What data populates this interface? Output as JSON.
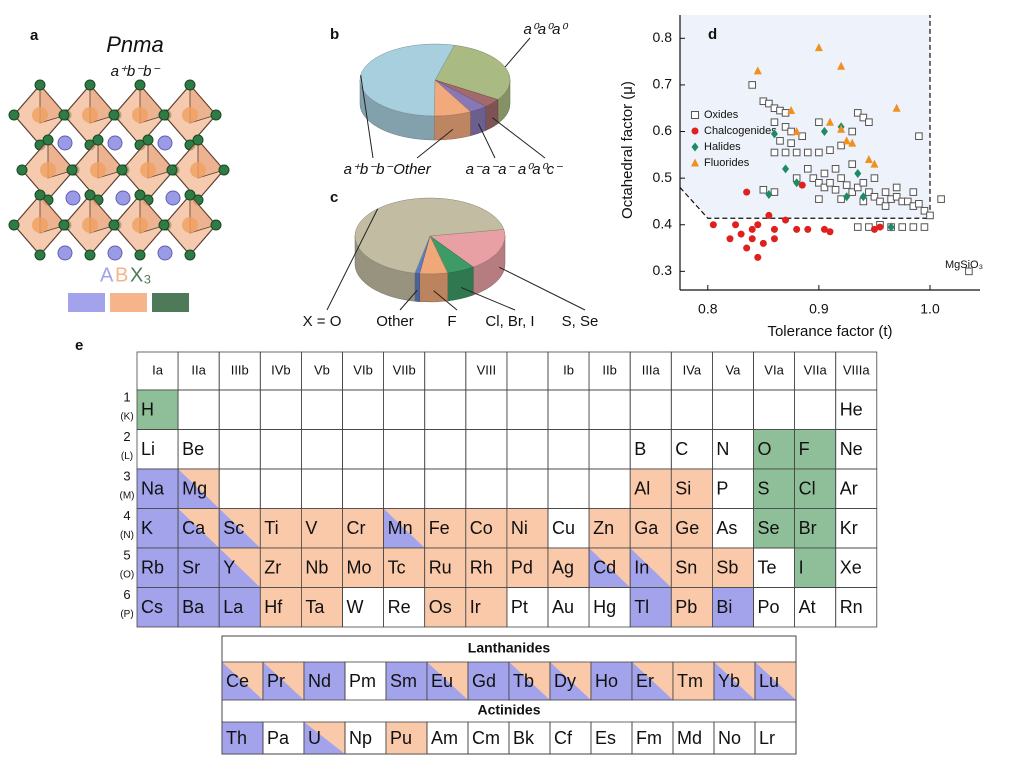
{
  "panel_a": {
    "panel": "a",
    "title": "Pnma",
    "subtitle": "a⁺b⁻b⁻",
    "sites": [
      {
        "label": "A",
        "color": "#a3a3ec"
      },
      {
        "label": "B",
        "color": "#f6b48a"
      },
      {
        "label": "X₃",
        "color": "#4f7a5a"
      }
    ]
  },
  "chart_data": [
    {
      "type": "pie",
      "panel": "b",
      "categories": [
        "a⁰a⁰a⁰",
        "a⁰a⁰c⁻",
        "a⁻a⁻a⁻",
        "Other",
        "a⁺b⁻b⁻"
      ],
      "values": [
        30,
        4,
        4,
        8,
        54
      ],
      "colors": [
        "#a9bb82",
        "#a26a6a",
        "#8a78b6",
        "#f2aa7c",
        "#a8cfdd"
      ]
    },
    {
      "type": "pie",
      "panel": "c",
      "categories": [
        "S, Se",
        "Cl, Br, I",
        "F",
        "Other",
        "X = O"
      ],
      "values": [
        18,
        6,
        6,
        1,
        69
      ],
      "colors": [
        "#e8a0a4",
        "#3e9a66",
        "#f0a878",
        "#5b7fc4",
        "#c2bca2"
      ]
    },
    {
      "type": "scatter",
      "panel": "d",
      "xlabel": "Tolerance factor (t)",
      "ylabel": "Octahedral factor (μ)",
      "xlim": [
        0.775,
        1.045
      ],
      "ylim": [
        0.26,
        0.85
      ],
      "xticks": [
        0.8,
        0.9,
        {
          "value": 1,
          "label": "1.0"
        }
      ],
      "yticks": [
        0.3,
        0.4,
        0.5,
        0.6,
        0.7,
        0.8
      ],
      "annotation": "MgSiO₃",
      "boundary": {
        "x": [
          0.775,
          0.8,
          1.0,
          1.0
        ],
        "y": [
          0.48,
          0.414,
          0.414,
          0.85
        ]
      },
      "series": [
        {
          "name": "Oxides",
          "color": "#555555",
          "marker": "square",
          "x": [
            0.84,
            0.85,
            0.855,
            0.86,
            0.865,
            0.87,
            0.86,
            0.87,
            0.875,
            0.885,
            0.865,
            0.875,
            0.86,
            0.87,
            0.88,
            0.89,
            0.9,
            0.91,
            0.92,
            0.935,
            0.94,
            0.945,
            0.93,
            0.9,
            0.99,
            0.85,
            0.86,
            0.89,
            0.895,
            0.9,
            0.905,
            0.91,
            0.915,
            0.92,
            0.925,
            0.93,
            0.935,
            0.94,
            0.945,
            0.95,
            0.955,
            0.96,
            0.965,
            0.97,
            0.975,
            0.98,
            0.985,
            0.99,
            0.995,
            1.0,
            1.01,
            0.905,
            0.915,
            0.93,
            0.9,
            0.92,
            0.94,
            0.96,
            0.935,
            0.945,
            0.955,
            0.965,
            0.975,
            0.985,
            0.995,
            1.035,
            0.88,
            0.95,
            0.97,
            0.985
          ],
          "y": [
            0.7,
            0.665,
            0.66,
            0.65,
            0.645,
            0.64,
            0.62,
            0.61,
            0.6,
            0.59,
            0.58,
            0.575,
            0.555,
            0.555,
            0.555,
            0.555,
            0.555,
            0.56,
            0.57,
            0.64,
            0.63,
            0.62,
            0.6,
            0.62,
            0.59,
            0.475,
            0.47,
            0.52,
            0.5,
            0.49,
            0.48,
            0.49,
            0.475,
            0.5,
            0.485,
            0.47,
            0.48,
            0.49,
            0.47,
            0.46,
            0.45,
            0.47,
            0.455,
            0.46,
            0.45,
            0.45,
            0.44,
            0.445,
            0.43,
            0.42,
            0.455,
            0.51,
            0.52,
            0.53,
            0.455,
            0.455,
            0.45,
            0.44,
            0.395,
            0.395,
            0.4,
            0.395,
            0.395,
            0.395,
            0.395,
            0.3,
            0.5,
            0.5,
            0.48,
            0.47
          ]
        },
        {
          "name": "Chalcogenides",
          "color": "#e01f1f",
          "marker": "circle",
          "x": [
            0.835,
            0.805,
            0.82,
            0.83,
            0.825,
            0.835,
            0.84,
            0.845,
            0.85,
            0.845,
            0.86,
            0.855,
            0.87,
            0.88,
            0.89,
            0.905,
            0.91,
            0.95,
            0.955,
            0.885,
            0.84,
            0.86
          ],
          "y": [
            0.47,
            0.4,
            0.37,
            0.38,
            0.4,
            0.35,
            0.37,
            0.33,
            0.36,
            0.4,
            0.39,
            0.42,
            0.41,
            0.39,
            0.39,
            0.39,
            0.385,
            0.39,
            0.395,
            0.485,
            0.39,
            0.37
          ]
        },
        {
          "name": "Halides",
          "color": "#1e8a66",
          "marker": "diamond",
          "x": [
            0.86,
            0.87,
            0.905,
            0.92,
            0.88,
            0.855,
            0.935,
            0.94,
            0.925,
            0.965
          ],
          "y": [
            0.595,
            0.52,
            0.6,
            0.61,
            0.49,
            0.465,
            0.51,
            0.46,
            0.46,
            0.395
          ]
        },
        {
          "name": "Fluorides",
          "color": "#f0901e",
          "marker": "triangle",
          "x": [
            0.845,
            0.9,
            0.92,
            0.97,
            0.875,
            0.88,
            0.91,
            0.925,
            0.93,
            0.945,
            0.95,
            0.92
          ],
          "y": [
            0.73,
            0.78,
            0.74,
            0.65,
            0.645,
            0.6,
            0.62,
            0.58,
            0.575,
            0.54,
            0.53,
            0.605
          ]
        }
      ]
    }
  ],
  "periodic_table": {
    "panel": "e",
    "fills": {
      "A": "#a3a3ec",
      "B": "#f9c9a9",
      "X": "#8fbf98"
    },
    "groups": [
      "Ia",
      "IIa",
      "IIIb",
      "IVb",
      "Vb",
      "VIb",
      "VIIb",
      null,
      "VIII",
      null,
      "Ib",
      "IIb",
      "IIIa",
      "IVa",
      "Va",
      "VIa",
      "VIIa",
      "VIIIa"
    ],
    "rows": [
      {
        "period": "1",
        "shell": "(K)",
        "cells": [
          {
            "s": "H",
            "fill": "X"
          },
          null,
          null,
          null,
          null,
          null,
          null,
          null,
          null,
          null,
          null,
          null,
          null,
          null,
          null,
          null,
          null,
          {
            "s": "He"
          }
        ]
      },
      {
        "period": "2",
        "shell": "(L)",
        "cells": [
          {
            "s": "Li"
          },
          {
            "s": "Be"
          },
          null,
          null,
          null,
          null,
          null,
          null,
          null,
          null,
          null,
          null,
          {
            "s": "B"
          },
          {
            "s": "C"
          },
          {
            "s": "N"
          },
          {
            "s": "O",
            "fill": "X"
          },
          {
            "s": "F",
            "fill": "X"
          },
          {
            "s": "Ne"
          }
        ]
      },
      {
        "period": "3",
        "shell": "(M)",
        "cells": [
          {
            "s": "Na",
            "fill": "A"
          },
          {
            "s": "Mg",
            "fill": "AB"
          },
          null,
          null,
          null,
          null,
          null,
          null,
          null,
          null,
          null,
          null,
          {
            "s": "Al",
            "fill": "B"
          },
          {
            "s": "Si",
            "fill": "B"
          },
          {
            "s": "P"
          },
          {
            "s": "S",
            "fill": "X"
          },
          {
            "s": "Cl",
            "fill": "X"
          },
          {
            "s": "Ar"
          }
        ]
      },
      {
        "period": "4",
        "shell": "(N)",
        "cells": [
          {
            "s": "K",
            "fill": "A"
          },
          {
            "s": "Ca",
            "fill": "AB"
          },
          {
            "s": "Sc",
            "fill": "AB"
          },
          {
            "s": "Ti",
            "fill": "B"
          },
          {
            "s": "V",
            "fill": "B"
          },
          {
            "s": "Cr",
            "fill": "B"
          },
          {
            "s": "Mn",
            "fill": "AB"
          },
          {
            "s": "Fe",
            "fill": "B"
          },
          {
            "s": "Co",
            "fill": "B"
          },
          {
            "s": "Ni",
            "fill": "B"
          },
          {
            "s": "Cu"
          },
          {
            "s": "Zn",
            "fill": "B"
          },
          {
            "s": "Ga",
            "fill": "B"
          },
          {
            "s": "Ge",
            "fill": "B"
          },
          {
            "s": "As"
          },
          {
            "s": "Se",
            "fill": "X"
          },
          {
            "s": "Br",
            "fill": "X"
          },
          {
            "s": "Kr"
          }
        ]
      },
      {
        "period": "5",
        "shell": "(O)",
        "cells": [
          {
            "s": "Rb",
            "fill": "A"
          },
          {
            "s": "Sr",
            "fill": "A"
          },
          {
            "s": "Y",
            "fill": "AB"
          },
          {
            "s": "Zr",
            "fill": "B"
          },
          {
            "s": "Nb",
            "fill": "B"
          },
          {
            "s": "Mo",
            "fill": "B"
          },
          {
            "s": "Tc",
            "fill": "B"
          },
          {
            "s": "Ru",
            "fill": "B"
          },
          {
            "s": "Rh",
            "fill": "B"
          },
          {
            "s": "Pd",
            "fill": "B"
          },
          {
            "s": "Ag",
            "fill": "B"
          },
          {
            "s": "Cd",
            "fill": "AB"
          },
          {
            "s": "In",
            "fill": "AB"
          },
          {
            "s": "Sn",
            "fill": "B"
          },
          {
            "s": "Sb",
            "fill": "B"
          },
          {
            "s": "Te"
          },
          {
            "s": "I",
            "fill": "X"
          },
          {
            "s": "Xe"
          }
        ]
      },
      {
        "period": "6",
        "shell": "(P)",
        "cells": [
          {
            "s": "Cs",
            "fill": "A"
          },
          {
            "s": "Ba",
            "fill": "A"
          },
          {
            "s": "La",
            "fill": "A"
          },
          {
            "s": "Hf",
            "fill": "B"
          },
          {
            "s": "Ta",
            "fill": "B"
          },
          {
            "s": "W"
          },
          {
            "s": "Re"
          },
          {
            "s": "Os",
            "fill": "B"
          },
          {
            "s": "Ir",
            "fill": "B"
          },
          {
            "s": "Pt"
          },
          {
            "s": "Au"
          },
          {
            "s": "Hg"
          },
          {
            "s": "Tl",
            "fill": "A"
          },
          {
            "s": "Pb",
            "fill": "B"
          },
          {
            "s": "Bi",
            "fill": "A"
          },
          {
            "s": "Po"
          },
          {
            "s": "At"
          },
          {
            "s": "Rn"
          }
        ]
      }
    ],
    "series_blocks": [
      {
        "title": "Lanthanides",
        "cells": [
          {
            "s": "Ce",
            "fill": "AB"
          },
          {
            "s": "Pr",
            "fill": "AB"
          },
          {
            "s": "Nd",
            "fill": "A"
          },
          {
            "s": "Pm"
          },
          {
            "s": "Sm",
            "fill": "A"
          },
          {
            "s": "Eu",
            "fill": "AB"
          },
          {
            "s": "Gd",
            "fill": "A"
          },
          {
            "s": "Tb",
            "fill": "AB"
          },
          {
            "s": "Dy",
            "fill": "AB"
          },
          {
            "s": "Ho",
            "fill": "A"
          },
          {
            "s": "Er",
            "fill": "AB"
          },
          {
            "s": "Tm",
            "fill": "B"
          },
          {
            "s": "Yb",
            "fill": "AB"
          },
          {
            "s": "Lu",
            "fill": "AB"
          }
        ]
      },
      {
        "title": "Actinides",
        "cells": [
          {
            "s": "Th",
            "fill": "A"
          },
          {
            "s": "Pa"
          },
          {
            "s": "U",
            "fill": "AB"
          },
          {
            "s": "Np"
          },
          {
            "s": "Pu",
            "fill": "B"
          },
          {
            "s": "Am"
          },
          {
            "s": "Cm"
          },
          {
            "s": "Bk"
          },
          {
            "s": "Cf"
          },
          {
            "s": "Es"
          },
          {
            "s": "Fm"
          },
          {
            "s": "Md"
          },
          {
            "s": "No"
          },
          {
            "s": "Lr"
          }
        ]
      }
    ]
  }
}
